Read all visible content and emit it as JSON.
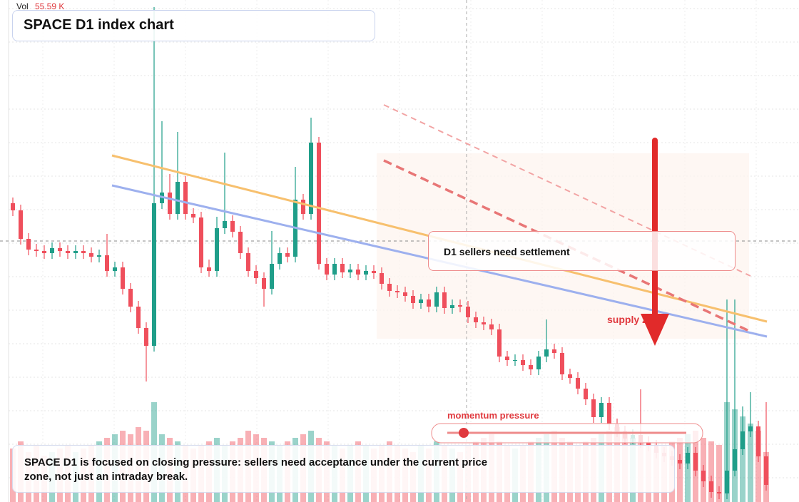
{
  "vol_label": "Vol",
  "vol_value": "55.59 K",
  "chart_data": {
    "type": "candlestick",
    "title": "SPACE D1 index chart",
    "open": [
      419,
      409,
      369,
      354,
      352,
      349,
      356,
      352,
      349,
      352,
      349,
      344,
      346,
      324,
      329,
      299,
      274,
      244,
      219,
      419,
      434,
      404,
      449,
      404,
      399,
      329,
      324,
      384,
      394,
      379,
      349,
      324,
      314,
      299,
      334,
      349,
      344,
      424,
      404,
      504,
      334,
      319,
      334,
      322,
      326,
      319,
      324,
      321,
      306,
      296,
      294,
      289,
      279,
      284,
      274,
      294,
      272,
      276,
      274,
      259,
      252,
      249,
      242,
      204,
      199,
      199,
      192,
      186,
      204,
      214,
      209,
      179,
      174,
      159,
      144,
      119,
      139,
      109,
      99,
      89,
      94,
      84,
      79,
      69,
      64,
      59,
      54,
      69,
      44,
      29,
      14,
      12,
      44,
      74,
      99,
      106,
      64
    ],
    "high": [
      427,
      417,
      377,
      362,
      360,
      364,
      364,
      360,
      360,
      360,
      357,
      354,
      376,
      337,
      337,
      307,
      282,
      252,
      694,
      534,
      460,
      519,
      457,
      412,
      407,
      340,
      400,
      490,
      402,
      387,
      357,
      332,
      322,
      380,
      357,
      357,
      470,
      432,
      539,
      512,
      342,
      342,
      342,
      334,
      334,
      332,
      332,
      329,
      314,
      304,
      302,
      297,
      292,
      292,
      302,
      302,
      284,
      284,
      282,
      267,
      260,
      257,
      250,
      212,
      207,
      207,
      200,
      212,
      256,
      222,
      217,
      187,
      182,
      167,
      152,
      147,
      147,
      117,
      107,
      102,
      158,
      92,
      87,
      77,
      72,
      67,
      77,
      77,
      52,
      37,
      22,
      284,
      284,
      134,
      154,
      114,
      140
    ],
    "low": [
      401,
      361,
      346,
      344,
      341,
      341,
      344,
      341,
      341,
      341,
      336,
      336,
      316,
      316,
      291,
      266,
      236,
      169,
      211,
      411,
      396,
      396,
      396,
      391,
      321,
      316,
      316,
      376,
      371,
      341,
      316,
      306,
      274,
      291,
      326,
      336,
      336,
      396,
      396,
      326,
      311,
      311,
      314,
      314,
      311,
      311,
      313,
      298,
      288,
      286,
      281,
      271,
      271,
      266,
      266,
      264,
      264,
      266,
      251,
      244,
      241,
      234,
      196,
      191,
      191,
      184,
      178,
      178,
      196,
      201,
      171,
      166,
      151,
      136,
      111,
      111,
      101,
      91,
      81,
      81,
      76,
      71,
      61,
      56,
      51,
      46,
      46,
      36,
      21,
      6,
      4,
      4,
      36,
      66,
      91,
      56,
      16
    ],
    "close": [
      409,
      369,
      354,
      352,
      349,
      356,
      352,
      349,
      352,
      349,
      344,
      346,
      324,
      329,
      299,
      274,
      244,
      219,
      419,
      434,
      404,
      449,
      404,
      399,
      329,
      324,
      384,
      394,
      379,
      349,
      324,
      314,
      299,
      334,
      349,
      344,
      424,
      404,
      504,
      334,
      319,
      334,
      322,
      326,
      319,
      324,
      321,
      306,
      296,
      294,
      289,
      279,
      284,
      274,
      294,
      272,
      276,
      274,
      259,
      252,
      249,
      242,
      204,
      199,
      199,
      192,
      186,
      204,
      214,
      209,
      179,
      174,
      159,
      144,
      119,
      139,
      109,
      99,
      89,
      94,
      84,
      79,
      69,
      64,
      59,
      54,
      69,
      44,
      29,
      14,
      12,
      44,
      74,
      99,
      106,
      64,
      24
    ],
    "volume": [
      75,
      85,
      70,
      80,
      65,
      70,
      75,
      80,
      70,
      75,
      80,
      85,
      90,
      95,
      100,
      95,
      105,
      100,
      140,
      95,
      90,
      85,
      80,
      75,
      80,
      85,
      90,
      80,
      85,
      90,
      100,
      95,
      90,
      85,
      80,
      85,
      90,
      95,
      100,
      90,
      85,
      80,
      75,
      80,
      85,
      80,
      75,
      80,
      85,
      80,
      75,
      70,
      80,
      75,
      85,
      80,
      75,
      70,
      80,
      85,
      90,
      95,
      85,
      80,
      75,
      80,
      85,
      90,
      95,
      100,
      90,
      85,
      80,
      85,
      90,
      95,
      100,
      105,
      95,
      90,
      85,
      80,
      75,
      80,
      85,
      90,
      95,
      100,
      90,
      85,
      80,
      140,
      130,
      120,
      110,
      100,
      70
    ],
    "ylim": [
      0,
      704
    ],
    "volume_ylim": [
      0,
      200
    ],
    "up_color": "#1f9e89",
    "down_color": "#ef4f5c",
    "grid": true
  },
  "annotations": {
    "box": "D1 sellers need settlement",
    "zone": "supply zone",
    "gauge": "momentum pressure",
    "caption": "SPACE D1 is focused on closing pressure: sellers need acceptance under the current price zone, not just an intraday break."
  }
}
